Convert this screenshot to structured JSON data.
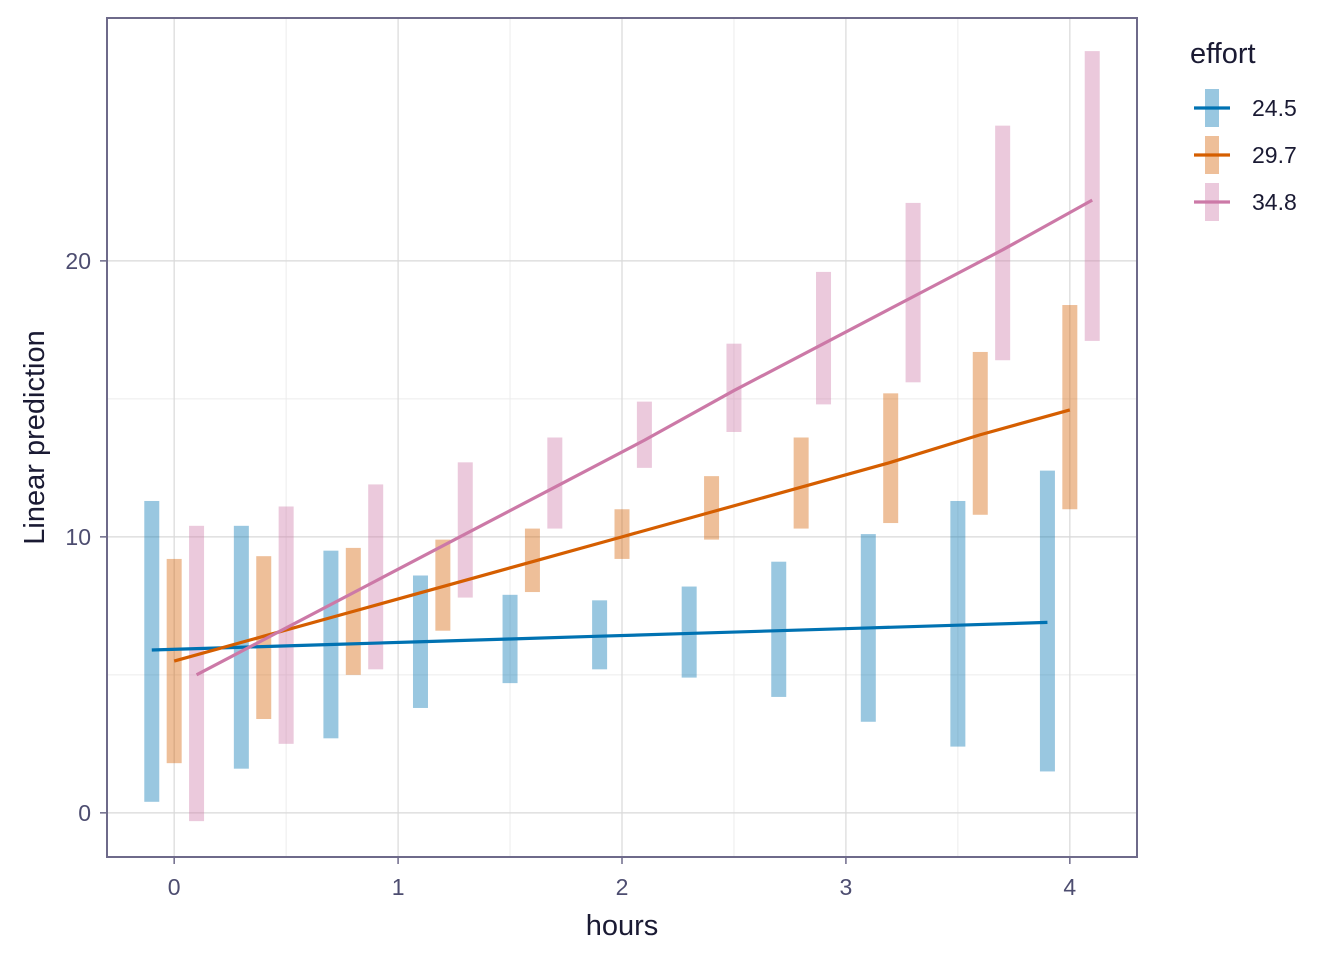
{
  "chart_data": {
    "type": "line",
    "xlabel": "hours",
    "ylabel": "Linear prediction",
    "xlim": [
      -0.3,
      4.3
    ],
    "ylim": [
      -1.6,
      28.8
    ],
    "xticks": [
      0,
      1,
      2,
      3,
      4
    ],
    "yticks": [
      0,
      10,
      20
    ],
    "grid": true,
    "legend_title": "effort",
    "legend_position": "right",
    "x": [
      0,
      0.4,
      0.8,
      1.2,
      1.6,
      2.0,
      2.4,
      2.8,
      3.2,
      3.6,
      4.0
    ],
    "series": [
      {
        "name": "24.5",
        "color": "#0072B2",
        "dodge": -0.1,
        "line": [
          5.9,
          6.0,
          6.1,
          6.2,
          6.3,
          6.4,
          6.5,
          6.6,
          6.7,
          6.8,
          6.9
        ],
        "intervals": [
          [
            0.4,
            11.3
          ],
          [
            1.6,
            10.4
          ],
          [
            2.7,
            9.5
          ],
          [
            3.8,
            8.6
          ],
          [
            4.7,
            7.9
          ],
          [
            5.2,
            7.7
          ],
          [
            4.9,
            8.2
          ],
          [
            4.2,
            9.1
          ],
          [
            3.3,
            10.1
          ],
          [
            2.4,
            11.3
          ],
          [
            1.5,
            12.4
          ]
        ]
      },
      {
        "name": "29.7",
        "color": "#D55E00",
        "dodge": 0,
        "line": [
          5.5,
          6.4,
          7.3,
          8.2,
          9.1,
          10.0,
          10.9,
          11.8,
          12.7,
          13.7,
          14.6
        ],
        "intervals": [
          [
            1.8,
            9.2
          ],
          [
            3.4,
            9.3
          ],
          [
            5.0,
            9.6
          ],
          [
            6.6,
            9.9
          ],
          [
            8.0,
            10.3
          ],
          [
            9.2,
            11.0
          ],
          [
            9.9,
            12.2
          ],
          [
            10.3,
            13.6
          ],
          [
            10.5,
            15.2
          ],
          [
            10.8,
            16.7
          ],
          [
            11.0,
            18.4
          ]
        ]
      },
      {
        "name": "34.8",
        "color": "#CC79A7",
        "dodge": 0.1,
        "line": [
          5.0,
          6.7,
          8.4,
          10.1,
          11.8,
          13.5,
          15.3,
          17.0,
          18.7,
          20.4,
          22.2
        ],
        "intervals": [
          [
            -0.3,
            10.4
          ],
          [
            2.5,
            11.1
          ],
          [
            5.2,
            11.9
          ],
          [
            7.8,
            12.7
          ],
          [
            10.3,
            13.6
          ],
          [
            12.5,
            14.9
          ],
          [
            13.8,
            17.0
          ],
          [
            14.8,
            19.6
          ],
          [
            15.6,
            22.1
          ],
          [
            16.4,
            24.9
          ],
          [
            17.1,
            27.6
          ]
        ]
      }
    ]
  }
}
